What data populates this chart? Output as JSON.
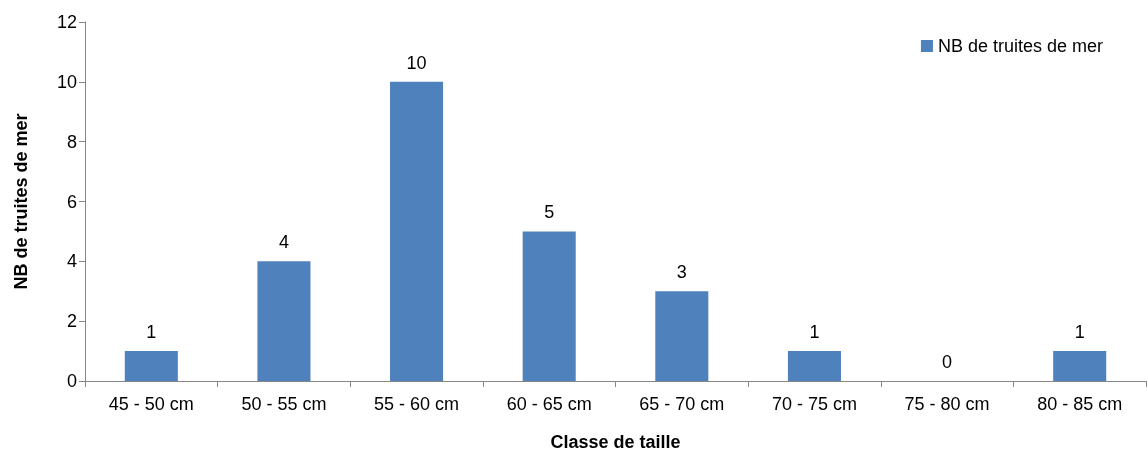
{
  "chart_data": {
    "type": "bar",
    "xlabel": "Classe de taille",
    "ylabel": "NB de truites de mer",
    "categories": [
      "45 - 50 cm",
      "50 - 55 cm",
      "55 - 60 cm",
      "60 - 65 cm",
      "65 - 70 cm",
      "70 - 75 cm",
      "75 - 80 cm",
      "80 - 85 cm"
    ],
    "series": [
      {
        "name": "NB de truites de mer",
        "color": "#4f81bd",
        "values": [
          1,
          4,
          10,
          5,
          3,
          1,
          0,
          1
        ]
      }
    ],
    "ylim": [
      0,
      12
    ],
    "yticks": [
      0,
      2,
      4,
      6,
      8,
      10,
      12
    ],
    "grid": false,
    "legend": "top right",
    "data_labels": true
  }
}
